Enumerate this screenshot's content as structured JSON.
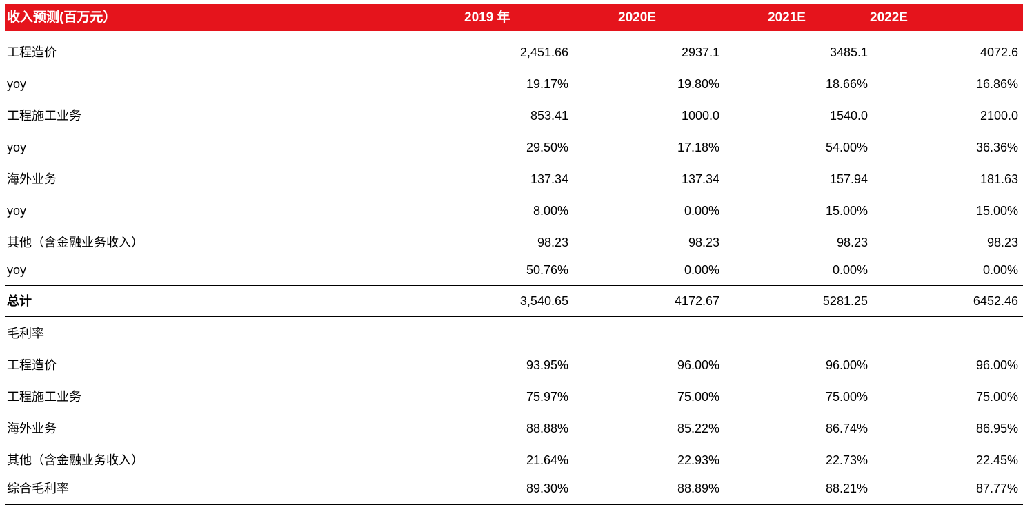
{
  "header": {
    "label": "收入预测(百万元）",
    "y1": "2019 年",
    "y2": "2020E",
    "y3": "2021E",
    "y4": "2022E"
  },
  "rows": [
    {
      "label": "工程造价",
      "v": [
        "2,451.66",
        "2937.1",
        "3485.1",
        "4072.6"
      ]
    },
    {
      "label": "yoy",
      "v": [
        "19.17%",
        "19.80%",
        "18.66%",
        "16.86%"
      ]
    },
    {
      "label": "工程施工业务",
      "v": [
        "853.41",
        "1000.0",
        "1540.0",
        "2100.0"
      ]
    },
    {
      "label": "yoy",
      "v": [
        "29.50%",
        "17.18%",
        "54.00%",
        "36.36%"
      ]
    },
    {
      "label": "海外业务",
      "v": [
        "137.34",
        "137.34",
        "157.94",
        "181.63"
      ]
    },
    {
      "label": "yoy",
      "v": [
        "8.00%",
        "0.00%",
        "15.00%",
        "15.00%"
      ]
    },
    {
      "label": "其他（含金融业务收入）",
      "v": [
        "98.23",
        "98.23",
        "98.23",
        "98.23"
      ]
    },
    {
      "label": "yoy",
      "v": [
        "50.76%",
        "0.00%",
        "0.00%",
        "0.00%"
      ]
    },
    {
      "label": "总计",
      "v": [
        "3,540.65",
        "4172.67",
        "5281.25",
        "6452.46"
      ]
    },
    {
      "label": "毛利率",
      "v": [
        "",
        "",
        "",
        ""
      ]
    },
    {
      "label": "工程造价",
      "v": [
        "93.95%",
        "96.00%",
        "96.00%",
        "96.00%"
      ]
    },
    {
      "label": "工程施工业务",
      "v": [
        "75.97%",
        "75.00%",
        "75.00%",
        "75.00%"
      ]
    },
    {
      "label": "海外业务",
      "v": [
        "88.88%",
        "85.22%",
        "86.74%",
        "86.95%"
      ]
    },
    {
      "label": "其他（含金融业务收入）",
      "v": [
        "21.64%",
        "22.93%",
        "22.73%",
        "22.45%"
      ]
    },
    {
      "label": "综合毛利率",
      "v": [
        "89.30%",
        "88.89%",
        "88.21%",
        "87.77%"
      ]
    }
  ]
}
